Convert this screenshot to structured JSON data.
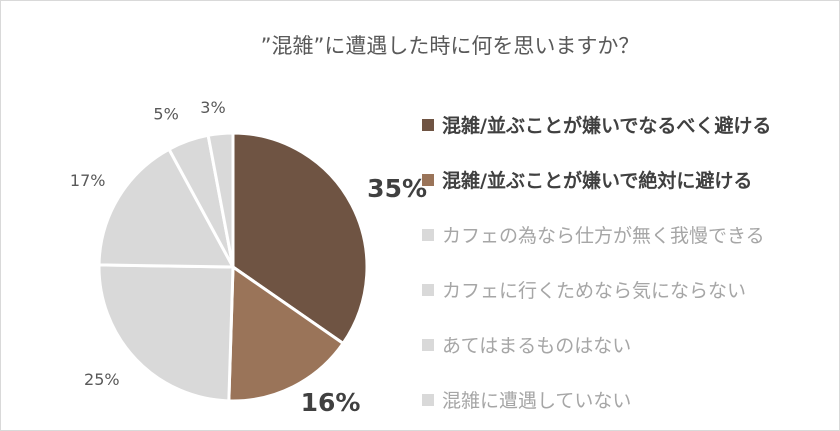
{
  "chart_data": {
    "type": "pie",
    "title": "”混雑”に遭遇した時に何を思いますか？",
    "start": "top",
    "direction": "clockwise",
    "legend_position": "right",
    "slices": [
      {
        "label": "混雑/並ぶことが嫌いでなるべく避ける",
        "value": 35,
        "value_label": "35%",
        "color": "#6F5443",
        "emphasized": true
      },
      {
        "label": "混雑/並ぶことが嫌いで絶対に避ける",
        "value": 16,
        "value_label": "16%",
        "color": "#9A7459",
        "emphasized": true
      },
      {
        "label": "カフェの為なら仕方が無く我慢できる",
        "value": 25,
        "value_label": "25%",
        "color": "#D9D9D9",
        "emphasized": false
      },
      {
        "label": "カフェに行くためなら気にならない",
        "value": 17,
        "value_label": "17%",
        "color": "#D9D9D9",
        "emphasized": false
      },
      {
        "label": "あてはまるものはない",
        "value": 5,
        "value_label": "5%",
        "color": "#D9D9D9",
        "emphasized": false
      },
      {
        "label": "混雑に遭遇していない",
        "value": 3,
        "value_label": "3%",
        "color": "#D9D9D9",
        "emphasized": false
      }
    ]
  }
}
